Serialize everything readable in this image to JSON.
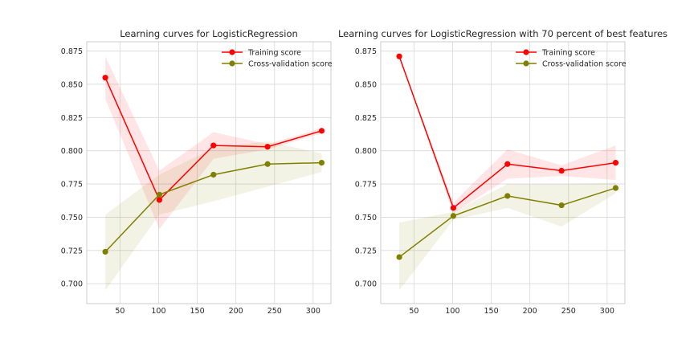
{
  "chart_data": [
    {
      "type": "line",
      "title": "Learning curves for LogisticRegression",
      "xlabel": "",
      "ylabel": "",
      "xlim": [
        7,
        323
      ],
      "ylim": [
        0.685,
        0.882
      ],
      "xticks": [
        50,
        100,
        150,
        200,
        250,
        300
      ],
      "yticks": [
        0.7,
        0.725,
        0.75,
        0.775,
        0.8,
        0.825,
        0.85,
        0.875
      ],
      "grid": true,
      "legend_position": "top-right",
      "x": [
        31,
        101,
        171,
        241,
        311
      ],
      "series": [
        {
          "name": "Training score",
          "color": "#ff0000",
          "values": [
            0.855,
            0.763,
            0.804,
            0.803,
            0.815
          ],
          "lower": [
            0.839,
            0.741,
            0.794,
            0.801,
            0.813
          ],
          "upper": [
            0.871,
            0.785,
            0.814,
            0.805,
            0.817
          ]
        },
        {
          "name": "Cross-validation score",
          "color": "#808000",
          "values": [
            0.724,
            0.767,
            0.782,
            0.79,
            0.791
          ],
          "lower": [
            0.695,
            0.752,
            0.762,
            0.773,
            0.784
          ],
          "upper": [
            0.752,
            0.782,
            0.802,
            0.807,
            0.798
          ]
        }
      ]
    },
    {
      "type": "line",
      "title": "Learning curves for LogisticRegression with 70 percent of best features",
      "xlabel": "",
      "ylabel": "",
      "xlim": [
        7,
        323
      ],
      "ylim": [
        0.685,
        0.882
      ],
      "xticks": [
        50,
        100,
        150,
        200,
        250,
        300
      ],
      "yticks": [
        0.7,
        0.725,
        0.75,
        0.775,
        0.8,
        0.825,
        0.85,
        0.875
      ],
      "grid": true,
      "legend_position": "top-right",
      "x": [
        31,
        101,
        171,
        241,
        311
      ],
      "series": [
        {
          "name": "Training score",
          "color": "#ff0000",
          "values": [
            0.871,
            0.757,
            0.79,
            0.785,
            0.791
          ],
          "lower": [
            0.871,
            0.753,
            0.779,
            0.781,
            0.778
          ],
          "upper": [
            0.871,
            0.761,
            0.801,
            0.789,
            0.804
          ]
        },
        {
          "name": "Cross-validation score",
          "color": "#808000",
          "values": [
            0.72,
            0.751,
            0.766,
            0.759,
            0.772
          ],
          "lower": [
            0.695,
            0.748,
            0.757,
            0.743,
            0.768
          ],
          "upper": [
            0.746,
            0.754,
            0.775,
            0.775,
            0.776
          ]
        }
      ]
    }
  ]
}
